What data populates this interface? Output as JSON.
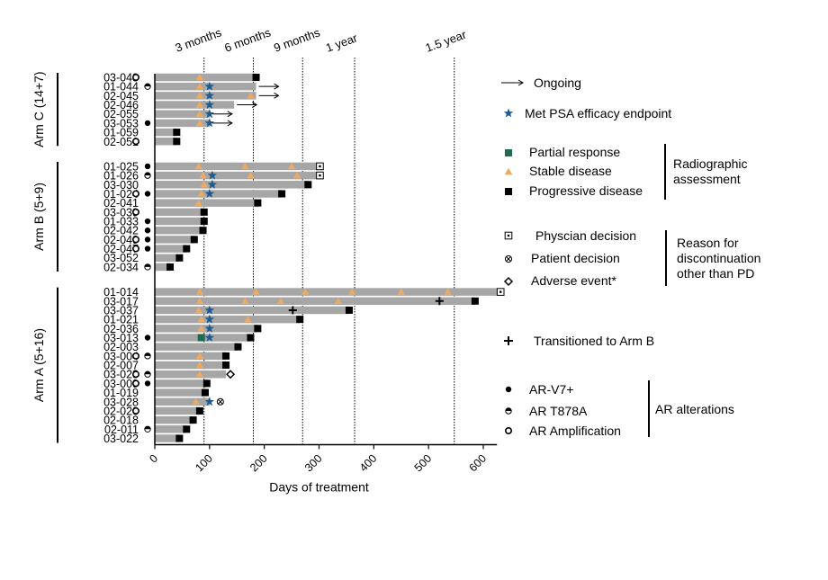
{
  "chart_data": {
    "type": "swimmer",
    "xlabel": "Days of treatment",
    "xlim": [
      0,
      625
    ],
    "x_ticks": [
      "0",
      "100",
      "200",
      "300",
      "400",
      "500",
      "600"
    ],
    "reference_lines": [
      {
        "label": "3 months",
        "x": 90
      },
      {
        "label": "6 months",
        "x": 180
      },
      {
        "label": "9 months",
        "x": 270
      },
      {
        "label": "1 year",
        "x": 365
      },
      {
        "label": "1.5 year",
        "x": 547
      }
    ],
    "groups": [
      {
        "name": "Arm C (14+7)",
        "patients": [
          {
            "id": "03-043",
            "days": 185,
            "end": "progressive",
            "ar": "amplification",
            "stable": [
              82
            ]
          },
          {
            "id": "01-044",
            "days": 185,
            "end": "ongoing",
            "ar": "t878a",
            "stable": [
              82
            ],
            "psa": 100
          },
          {
            "id": "02-045",
            "days": 185,
            "end": "ongoing",
            "stable": [
              82,
              175
            ],
            "psa": 100
          },
          {
            "id": "02-046",
            "days": 145,
            "end": "ongoing",
            "stable": [
              82
            ],
            "psa": 100
          },
          {
            "id": "02-055",
            "days": 100,
            "end": "ongoing",
            "stable": [
              82
            ],
            "psa": 100
          },
          {
            "id": "03-053",
            "days": 100,
            "end": "ongoing",
            "ar": "v7",
            "stable": [
              82
            ],
            "psa": 100
          },
          {
            "id": "01-059",
            "days": 40,
            "end": "progressive"
          },
          {
            "id": "02-051",
            "days": 40,
            "end": "progressive",
            "ar": "amplification"
          }
        ]
      },
      {
        "name": "Arm B (5+9)",
        "patients": [
          {
            "id": "01-025",
            "days": 295,
            "end": "physician",
            "ar": "v7",
            "stable": [
              80,
              165,
              250
            ]
          },
          {
            "id": "01-026",
            "days": 295,
            "end": "physician",
            "ar": "t878a",
            "stable": [
              88,
              175,
              260
            ],
            "psa": 105
          },
          {
            "id": "03-030",
            "days": 280,
            "end": "progressive",
            "stable": [
              90
            ],
            "psa": 105
          },
          {
            "id": "01-024",
            "days": 232,
            "end": "progressive",
            "ar": "amp_v7",
            "stable": [
              85
            ],
            "psa": 100
          },
          {
            "id": "02-041",
            "days": 188,
            "end": "progressive",
            "stable": [
              80
            ]
          },
          {
            "id": "03-039",
            "days": 90,
            "end": "progressive",
            "ar": "amplification"
          },
          {
            "id": "01-033",
            "days": 90,
            "end": "progressive",
            "ar": "v7"
          },
          {
            "id": "02-042",
            "days": 88,
            "end": "progressive",
            "ar": "v7"
          },
          {
            "id": "02-049",
            "days": 72,
            "end": "progressive",
            "ar": "amp_v7"
          },
          {
            "id": "02-047",
            "days": 58,
            "end": "progressive",
            "ar": "amp_v7"
          },
          {
            "id": "03-052",
            "days": 45,
            "end": "progressive"
          },
          {
            "id": "02-034",
            "days": 28,
            "end": "progressive",
            "ar": "t878a"
          }
        ]
      },
      {
        "name": "Arm A (5+16)",
        "patients": [
          {
            "id": "01-014",
            "days": 625,
            "end": "physician",
            "stable": [
              82,
              185,
              275,
              360,
              450,
              535
            ]
          },
          {
            "id": "03-017",
            "days": 585,
            "end": "progressive",
            "stable": [
              82,
              165,
              230,
              335
            ],
            "transition": 520
          },
          {
            "id": "03-037",
            "days": 355,
            "end": "progressive",
            "stable": [
              80
            ],
            "psa": 100,
            "transition": 252
          },
          {
            "id": "01-021",
            "days": 265,
            "end": "progressive",
            "stable": [
              85,
              170
            ],
            "psa": 100
          },
          {
            "id": "02-036",
            "days": 188,
            "end": "progressive",
            "stable": [
              85
            ],
            "psa": 100
          },
          {
            "id": "03-013",
            "days": 175,
            "end": "progressive",
            "ar": "v7",
            "partial": 85,
            "psa": 100
          },
          {
            "id": "02-003",
            "days": 152,
            "end": "progressive"
          },
          {
            "id": "03-004",
            "days": 130,
            "end": "progressive",
            "ar": "amp_t878a",
            "stable": [
              82
            ]
          },
          {
            "id": "02-007",
            "days": 130,
            "end": "progressive",
            "stable": [
              82
            ]
          },
          {
            "id": "03-023",
            "days": 130,
            "end": "adverse",
            "ar": "amp_t878a",
            "stable": [
              82
            ]
          },
          {
            "id": "03-009",
            "days": 95,
            "end": "progressive",
            "ar": "amp_v7"
          },
          {
            "id": "01-019",
            "days": 92,
            "end": "progressive"
          },
          {
            "id": "03-028",
            "days": 100,
            "end": "patient",
            "stable": [
              75
            ],
            "psa": 100
          },
          {
            "id": "02-020",
            "days": 82,
            "end": "progressive",
            "ar": "amplification"
          },
          {
            "id": "02-018",
            "days": 70,
            "end": "progressive"
          },
          {
            "id": "02-011",
            "days": 58,
            "end": "progressive",
            "ar": "t878a"
          },
          {
            "id": "03-022",
            "days": 45,
            "end": "progressive"
          }
        ]
      }
    ],
    "legend": {
      "ongoing": "Ongoing",
      "psa": "Met PSA efficacy endpoint",
      "partial": "Partial response",
      "stable": "Stable disease",
      "progressive": "Progressive disease",
      "radiographic_title": [
        "Radiographic",
        "assessment"
      ],
      "physician": "Physcian decision",
      "patient": "Patient decision",
      "adverse": "Adverse event*",
      "discontinuation_title": [
        "Reason for",
        "discontinuation",
        "other than  PD"
      ],
      "transition": "Transitioned to Arm B",
      "v7": "AR-V7+",
      "t878a": "AR T878A",
      "amplification": "AR Amplification",
      "ar_title": "AR alterations"
    },
    "colors": {
      "bar": "#a6a6a6",
      "stable": "#f0a960",
      "partial": "#1e6b52",
      "psa": "#1f5b91",
      "marker": "#000000"
    }
  }
}
